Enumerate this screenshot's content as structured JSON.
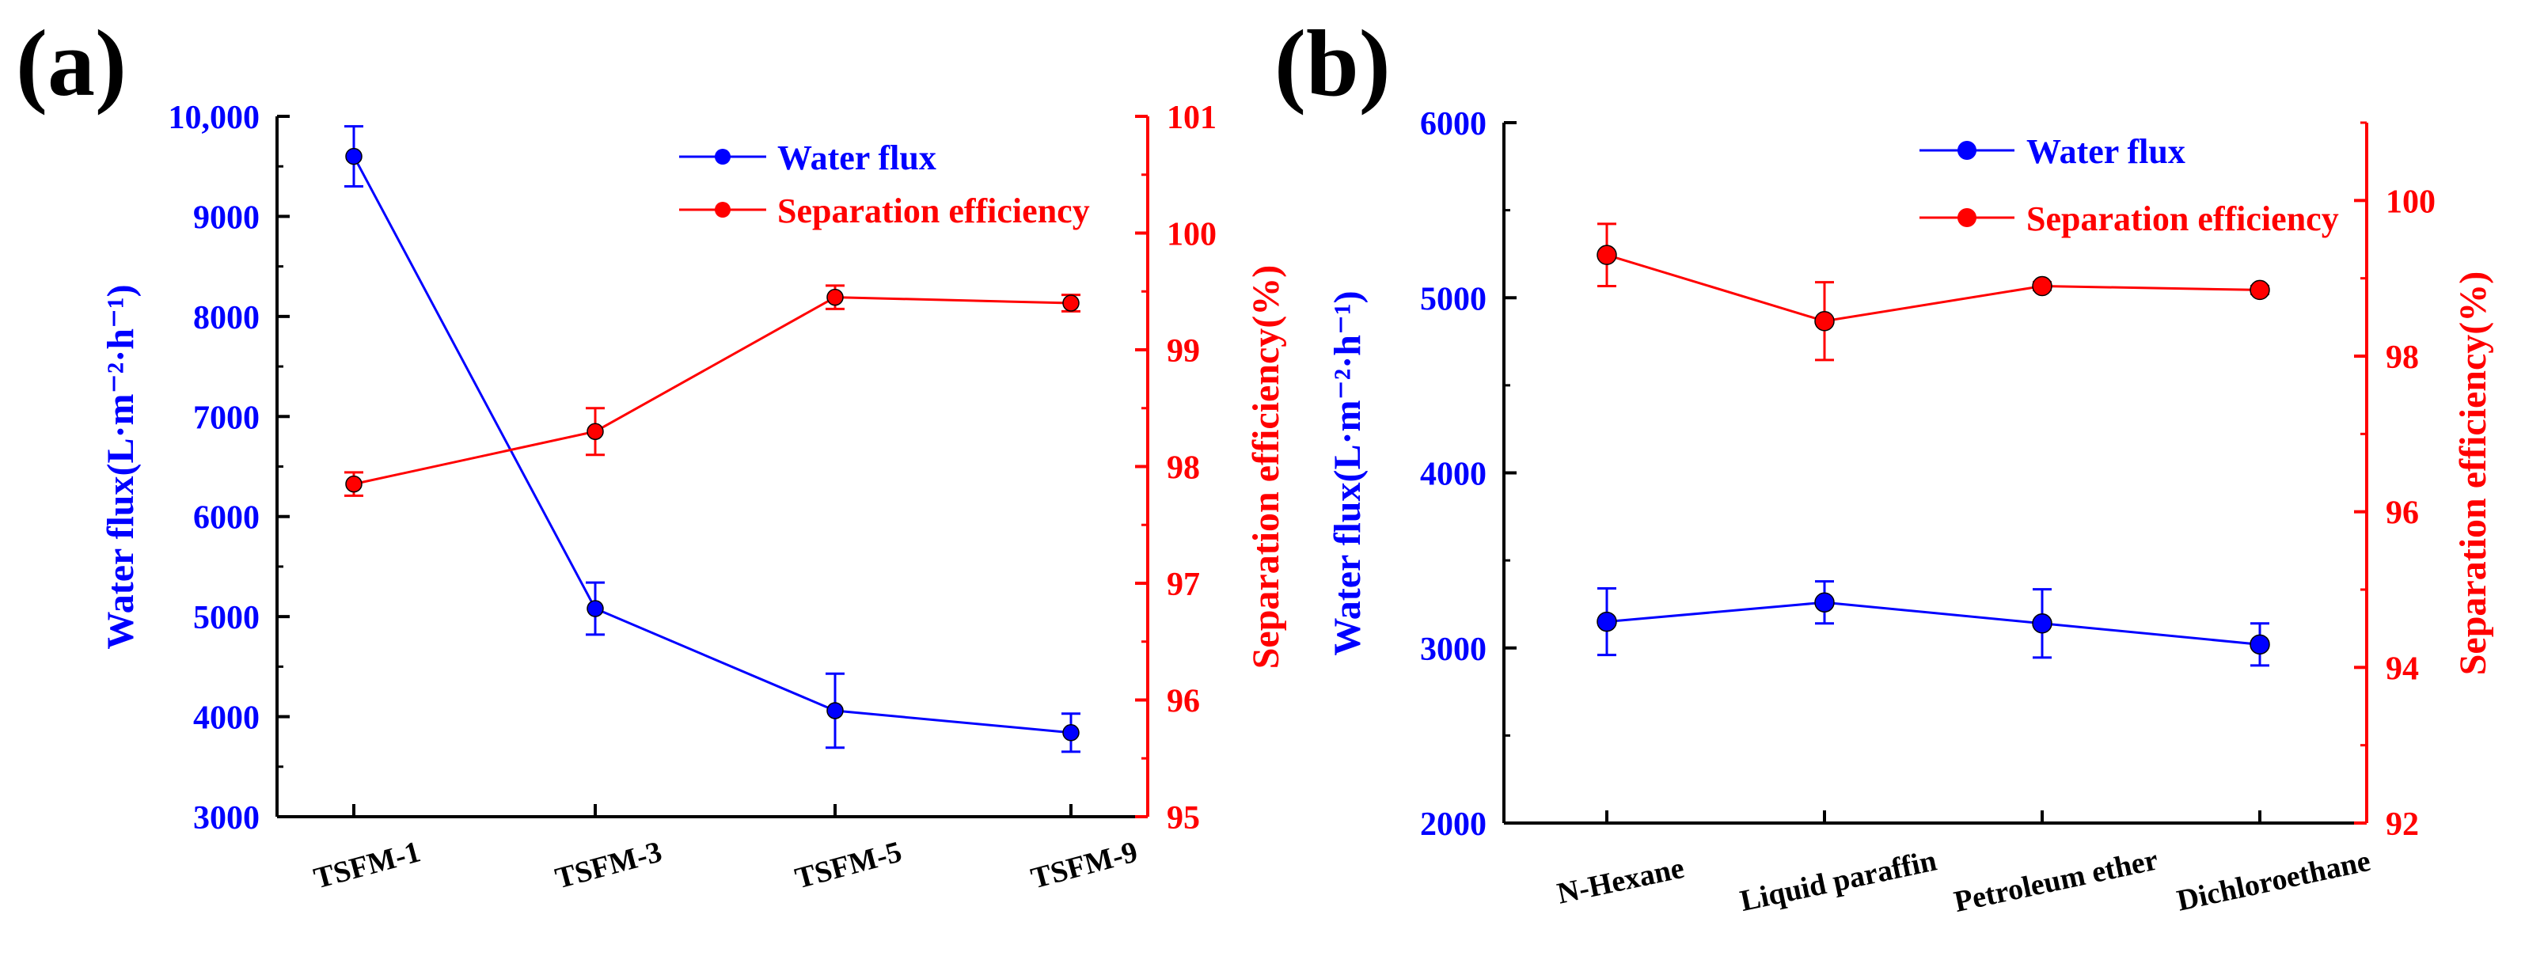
{
  "colors": {
    "flux": "#0000ff",
    "efficiency": "#ff0000",
    "axis": "#000000"
  },
  "chart_data": [
    {
      "type": "line",
      "panel_label": "(a)",
      "categories": [
        "TSFM-1",
        "TSFM-3",
        "TSFM-5",
        "TSFM-9"
      ],
      "y_left": {
        "label": "Water flux(L·m⁻²·h⁻¹)",
        "range": [
          3000,
          10000
        ],
        "ticks": [
          3000,
          4000,
          5000,
          6000,
          7000,
          8000,
          9000,
          10000
        ],
        "tick_labels": [
          "3000",
          "4000",
          "5000",
          "6000",
          "7000",
          "8000",
          "9000",
          "10,000"
        ]
      },
      "y_right": {
        "label": "Separation efficiency(%)",
        "range": [
          95,
          101
        ],
        "ticks": [
          95,
          96,
          97,
          98,
          99,
          100,
          101
        ],
        "tick_labels": [
          "95",
          "96",
          "97",
          "98",
          "99",
          "100",
          "101"
        ]
      },
      "legend_position": "top-right",
      "series": [
        {
          "name": "Water flux",
          "axis": "left",
          "color": "#0000ff",
          "values": [
            9600,
            5080,
            4060,
            3840
          ],
          "errors": [
            300,
            260,
            370,
            190
          ]
        },
        {
          "name": "Separation efficiency",
          "axis": "right",
          "color": "#ff0000",
          "values": [
            97.85,
            98.3,
            99.45,
            99.4
          ],
          "errors": [
            0.1,
            0.2,
            0.1,
            0.07
          ]
        }
      ]
    },
    {
      "type": "line",
      "panel_label": "(b)",
      "categories": [
        "N-Hexane",
        "Liquid paraffin",
        "Petroleum ether",
        "Dichloroethane"
      ],
      "y_left": {
        "label": "Water flux(L·m⁻²·h⁻¹)",
        "range": [
          2000,
          6000
        ],
        "ticks": [
          2000,
          3000,
          4000,
          5000,
          6000
        ],
        "tick_labels": [
          "2000",
          "3000",
          "4000",
          "5000",
          "6000"
        ]
      },
      "y_right": {
        "label": "Separation efficiency(%)",
        "range": [
          92,
          101
        ],
        "ticks": [
          92,
          94,
          96,
          98,
          100
        ],
        "tick_labels": [
          "92",
          "94",
          "96",
          "98",
          "100"
        ]
      },
      "legend_position": "top-right",
      "series": [
        {
          "name": "Water flux",
          "axis": "left",
          "color": "#0000ff",
          "values": [
            3150,
            3260,
            3140,
            3020
          ],
          "errors": [
            190,
            120,
            195,
            120
          ]
        },
        {
          "name": "Separation efficiency",
          "axis": "right",
          "color": "#ff0000",
          "values": [
            99.3,
            98.45,
            98.9,
            98.85
          ],
          "errors": [
            0.4,
            0.5,
            0.05,
            0.05
          ]
        }
      ]
    }
  ]
}
